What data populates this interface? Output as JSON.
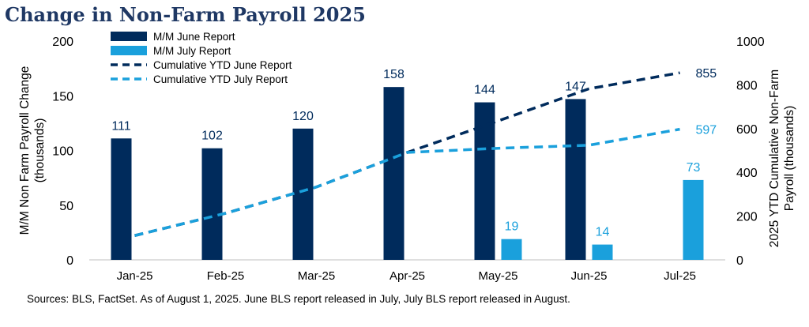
{
  "title": "Change in Non-Farm Payroll 2025",
  "source_note": "Sources: BLS, FactSet. As of August 1, 2025. June BLS report released in July, July BLS report released in August.",
  "chart_data": {
    "type": "bar",
    "categories": [
      "Jan-25",
      "Feb-25",
      "Mar-25",
      "Apr-25",
      "May-25",
      "Jun-25",
      "Jul-25"
    ],
    "ylabel": "M/M Non Farm Payroll Change (thousands)",
    "ylim": [
      0,
      200
    ],
    "yticks": [
      0,
      50,
      100,
      150,
      200
    ],
    "y2label": "2025 YTD Cumulative Non-Farm Payroll (thousands)",
    "y2lim": [
      0,
      1000
    ],
    "y2ticks": [
      0,
      200,
      400,
      600,
      800,
      1000
    ],
    "grid": false,
    "legend_position": "top-left",
    "series": [
      {
        "name": "M/M June Report",
        "kind": "bar",
        "axis": "left",
        "color": "#002b5c",
        "values": [
          111,
          102,
          120,
          158,
          144,
          147,
          null
        ],
        "labels": [
          "111",
          "102",
          "120",
          "158",
          "144",
          "147",
          ""
        ]
      },
      {
        "name": "M/M July Report",
        "kind": "bar",
        "axis": "left",
        "color": "#1aa0dc",
        "values": [
          null,
          null,
          null,
          null,
          19,
          14,
          73
        ],
        "labels": [
          "",
          "",
          "",
          "",
          "19",
          "14",
          "73"
        ]
      },
      {
        "name": "Cumulative YTD June Report",
        "kind": "line",
        "style": "dashed",
        "axis": "right",
        "color": "#002b5c",
        "values": [
          111,
          213,
          333,
          491,
          635,
          782,
          855
        ],
        "end_label": "855"
      },
      {
        "name": "Cumulative YTD July Report",
        "kind": "line",
        "style": "dashed",
        "axis": "right",
        "color": "#1aa0dc",
        "values": [
          111,
          213,
          333,
          491,
          510,
          524,
          597
        ],
        "end_label": "597"
      }
    ]
  }
}
